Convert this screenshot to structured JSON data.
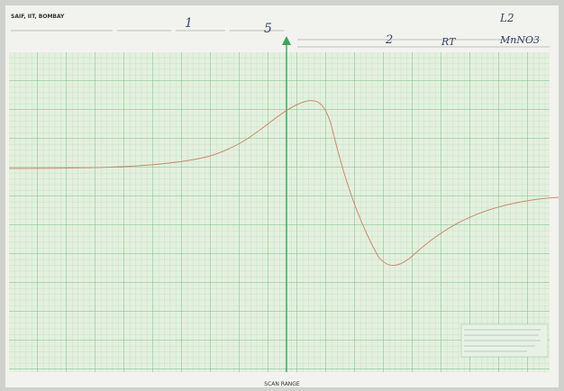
{
  "header": {
    "lab": "SAIF, IIT, BOMBAY"
  },
  "handwriting": {
    "field_1": "1",
    "field_2": "5",
    "sample_no": "2",
    "temperature": "RT",
    "code": "L2",
    "compound": "MnNO3"
  },
  "footer": {
    "axis_label": "SCAN RANGE"
  }
}
